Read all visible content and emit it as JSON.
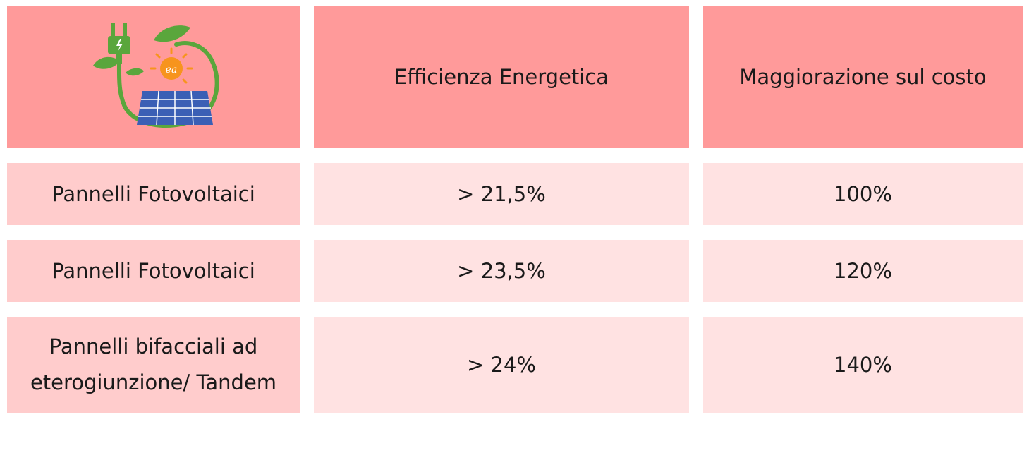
{
  "table": {
    "header": {
      "logo_icon": "solar-energy-logo-icon",
      "logo_text": "ea",
      "columns": [
        "Efficienza Energetica",
        "Maggiorazione sul costo"
      ]
    },
    "rows": [
      {
        "label": "Pannelli Fotovoltaici",
        "efficiency": "> 21,5%",
        "cost_increase": "100%"
      },
      {
        "label": "Pannelli Fotovoltaici",
        "efficiency": "> 23,5%",
        "cost_increase": "120%"
      },
      {
        "label_line1": "Pannelli bifacciali ad",
        "label_line2": "eterogiunzione/ Tandem",
        "efficiency": "> 24%",
        "cost_increase": "140%"
      }
    ]
  },
  "colors": {
    "header_bg": "#ff9a9a",
    "label_bg": "#ffcccc",
    "value_bg": "#ffe2e2",
    "logo_green": "#5aa63c",
    "logo_sun": "#f7941d",
    "logo_panel": "#3b5fb5"
  }
}
